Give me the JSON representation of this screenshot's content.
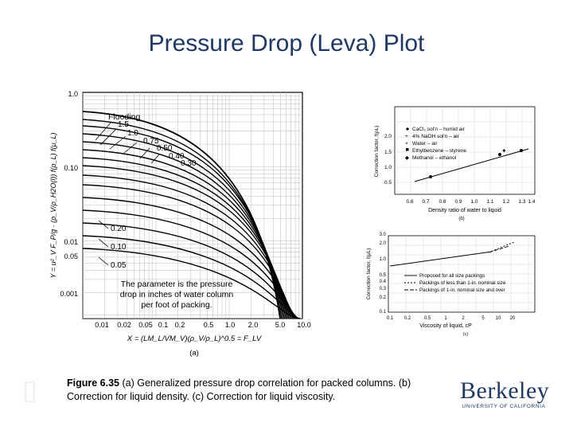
{
  "slide": {
    "title": "Pressure Drop (Leva) Plot"
  },
  "caption": {
    "figure_label": "Figure 6.35",
    "text": " (a) Generalized pressure drop correlation for packed columns. (b) Correction for liquid density. (c) Correction for liquid viscosity."
  },
  "logo": {
    "word": "Berkeley",
    "sub": "UNIVERSITY OF CALIFORNIA"
  },
  "panel_a": {
    "y_ticks": [
      "1.0",
      "0.10",
      "0.01",
      "0.001"
    ],
    "y_minor_ticks": [
      "0.05"
    ],
    "x_ticks": [
      "0.01",
      "0.02",
      "0.05",
      "0.1",
      "0.2",
      "0.5",
      "1.0",
      "2.0",
      "5.0",
      "10.0"
    ],
    "flooding_label": "Flooding",
    "curve_labels_top": [
      "1.5",
      "1.0",
      "0.75",
      "0.50",
      "0.40",
      "0.30"
    ],
    "curve_labels_bottom": [
      "0.20",
      "0.10",
      "0.05"
    ],
    "parameter_note": [
      "The parameter is the pressure",
      "drop in inches of water column",
      "per foot of packing."
    ],
    "x_label": "X = (LM_L/VM_V)(ρ_V/ρ_L)^0.5 = F_LV",
    "y_label": "Y = u²_V F_P/g · (ρ_V/ρ_H2O(l)) f(ρ_L) f(μ_L)",
    "panel_label": "(a)"
  },
  "panel_b": {
    "y_label": "Correction factor, f(ρL)",
    "y_ticks": [
      "2.0",
      "1.5",
      "1.0",
      "0.5"
    ],
    "x_ticks": [
      "0.6",
      "0.7",
      "0.8",
      "0.9",
      "1.0",
      "1.1",
      "1.2",
      "1.3",
      "1.4"
    ],
    "x_label": "Density ratio of water to liquid",
    "legend": [
      "CaCl₂ sol'n – humid air",
      "4% NaOH sol'n – air",
      "Water – air",
      "Ethylbenzene – styrene",
      "Methanol – ethanol"
    ],
    "panel_label": "(b)"
  },
  "panel_c": {
    "y_label": "Correction factor, f(μL)",
    "y_ticks": [
      "3.0",
      "2.0",
      "1.0",
      "0.5",
      "0.4",
      "0.3",
      "0.2",
      "0.1"
    ],
    "x_ticks": [
      "0.1",
      "0.2",
      "0.5",
      "1",
      "2",
      "5",
      "10",
      "20"
    ],
    "x_label": "Viscosity of liquid, cP",
    "legend": [
      "Proposed for all size packings",
      "Packings of less than 1-in. nominal size",
      "Packings of 1-in. nominal size and over"
    ],
    "panel_label": "(c)"
  },
  "colors": {
    "title": "#1f3864",
    "logo": "#1f3864",
    "ink": "#000000"
  }
}
